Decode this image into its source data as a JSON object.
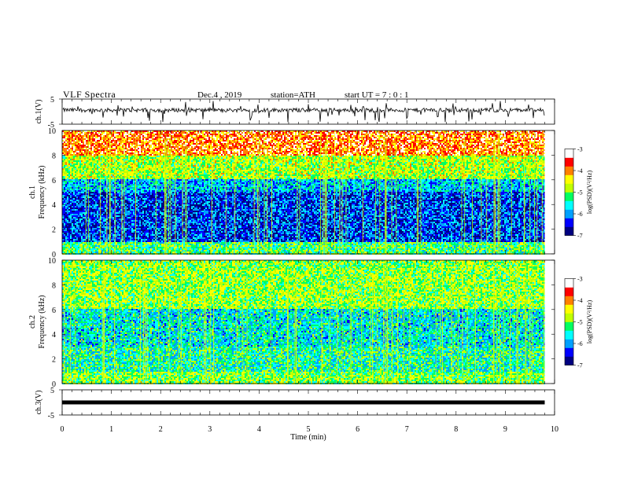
{
  "header": {
    "title": "VLF  Spectra",
    "date": "Dec.4  , 2019",
    "station": "station=ATH",
    "start": "start  UT  =    7  : 0   : 1"
  },
  "chart_data": [
    {
      "type": "line",
      "id": "ch1-waveform",
      "ylabel": "ch.1(V)",
      "ylim": [
        -5,
        5
      ],
      "yticks": [
        "5",
        "-5"
      ],
      "xlim": [
        0,
        10
      ],
      "grid": false
    },
    {
      "type": "heatmap",
      "id": "ch1-spectrogram",
      "ylabel": "ch.1\nFrequency  (kHz)",
      "ylim": [
        0,
        10
      ],
      "yticks": [
        "0",
        "2",
        "4",
        "6",
        "8",
        "10"
      ],
      "xlim": [
        0,
        10
      ],
      "colorbar": {
        "label": "log(PSD)(V²/Hz)",
        "range": [
          -7,
          -3
        ],
        "ticks": [
          "-3",
          "-4",
          "-5",
          "-6",
          "-7"
        ],
        "colors": [
          "#000080",
          "#0000ff",
          "#00a0ff",
          "#00ffff",
          "#00ff60",
          "#c0ff00",
          "#ffff00",
          "#ff8000",
          "#ff0000",
          "#ffffff"
        ]
      },
      "bands_log_psd": [
        {
          "from_khz": 8,
          "to_khz": 10,
          "level": -3.8
        },
        {
          "from_khz": 6,
          "to_khz": 8,
          "level": -4.8
        },
        {
          "from_khz": 5,
          "to_khz": 6,
          "level": -5.8
        },
        {
          "from_khz": 1,
          "to_khz": 5,
          "level": -6.3
        },
        {
          "from_khz": 0,
          "to_khz": 1,
          "level": -5.2
        }
      ]
    },
    {
      "type": "heatmap",
      "id": "ch2-spectrogram",
      "ylabel": "ch.2\nFrequency  (kHz)",
      "ylim": [
        0,
        10
      ],
      "yticks": [
        "0",
        "2",
        "4",
        "6",
        "8",
        "10"
      ],
      "xlim": [
        0,
        10
      ],
      "colorbar": {
        "label": "log(PSD)(V²/Hz)",
        "range": [
          -7,
          -3
        ],
        "ticks": [
          "-3",
          "-4",
          "-5",
          "-6",
          "-7"
        ]
      },
      "bands_log_psd": [
        {
          "from_khz": 6,
          "to_khz": 10,
          "level": -4.9
        },
        {
          "from_khz": 3,
          "to_khz": 6,
          "level": -5.6
        },
        {
          "from_khz": 1,
          "to_khz": 3,
          "level": -5.4
        },
        {
          "from_khz": 0,
          "to_khz": 1,
          "level": -5.0
        }
      ]
    },
    {
      "type": "line",
      "id": "ch3-waveform",
      "ylabel": "ch.3(V)",
      "ylim": [
        -5,
        5
      ],
      "yticks": [
        "5",
        "-5"
      ],
      "xlim": [
        0,
        10
      ],
      "constant_value": 0,
      "grid": false
    }
  ],
  "x_axis": {
    "label": "Time  (min)",
    "ticks": [
      "0",
      "1",
      "2",
      "3",
      "4",
      "5",
      "6",
      "7",
      "8",
      "9",
      "10"
    ],
    "range": [
      0,
      10
    ],
    "data_end_min": 9.8
  }
}
